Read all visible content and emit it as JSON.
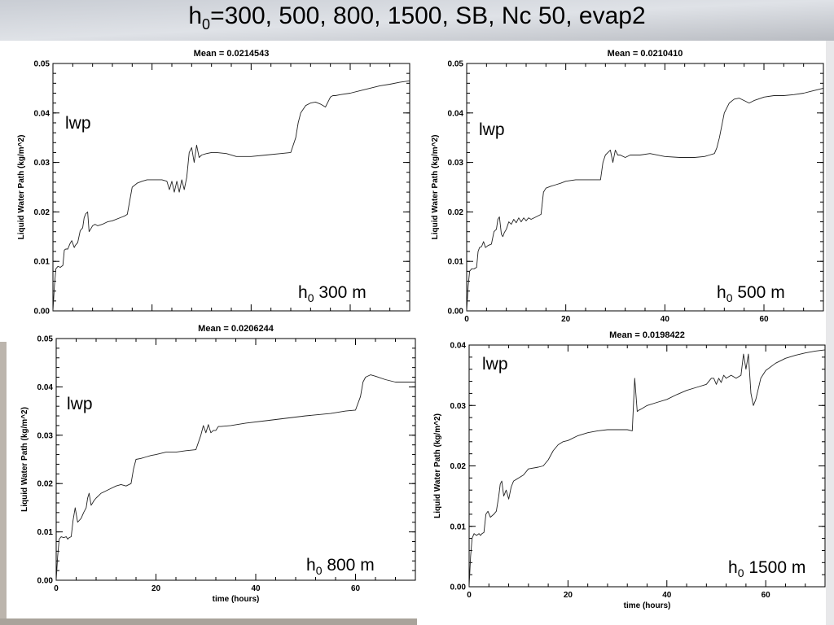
{
  "slide": {
    "title_prefix": "h",
    "title_sub": "0",
    "title_rest": "=300, 500, 800, 1500,  SB, Nc 50, evap2"
  },
  "chart_data": [
    {
      "type": "line",
      "title": "Mean = 0.0214543",
      "ylabel": "Liquid Water Path (kg/m^2)",
      "xlabel": "",
      "xlim": [
        0,
        72
      ],
      "ylim": [
        0,
        0.05
      ],
      "yticks": [
        "0.00",
        "0.01",
        "0.02",
        "0.03",
        "0.04",
        "0.05"
      ],
      "xticks": [],
      "inner_label": "lwp",
      "corner_label": {
        "prefix": "h",
        "sub": "0",
        "rest": " 300 m"
      },
      "series": [
        {
          "x": [
            0,
            0.3,
            0.6,
            1,
            1.5,
            2,
            2.3,
            2.6,
            3,
            3.4,
            3.8,
            4.3,
            4.5,
            5,
            5.5,
            6,
            6.3,
            6.6,
            7,
            7.3,
            7.6,
            8,
            8.5,
            9,
            10,
            11,
            12,
            14,
            14.5,
            15,
            16,
            17,
            18,
            19,
            20,
            21,
            22,
            23,
            23.5,
            24,
            24.5,
            25,
            25.5,
            26,
            26.5,
            27,
            27.5,
            28,
            28.5,
            29,
            29.5,
            30,
            31,
            32,
            33,
            35,
            37,
            40,
            43,
            46,
            48,
            49,
            49.5,
            50,
            51,
            52,
            53,
            54,
            55,
            56,
            56.5,
            57,
            58,
            60,
            62,
            64,
            66,
            68,
            70,
            72
          ],
          "y": [
            0,
            0.005,
            0.0085,
            0.009,
            0.0088,
            0.0092,
            0.0123,
            0.0125,
            0.0125,
            0.0135,
            0.0142,
            0.0128,
            0.0132,
            0.0138,
            0.0162,
            0.0168,
            0.0188,
            0.0196,
            0.02,
            0.016,
            0.0165,
            0.0172,
            0.0175,
            0.0172,
            0.0175,
            0.018,
            0.0182,
            0.019,
            0.0192,
            0.0195,
            0.025,
            0.0258,
            0.0262,
            0.0265,
            0.0265,
            0.0265,
            0.0265,
            0.0262,
            0.0245,
            0.0262,
            0.024,
            0.0262,
            0.024,
            0.0265,
            0.0245,
            0.027,
            0.032,
            0.033,
            0.03,
            0.0335,
            0.031,
            0.0315,
            0.0318,
            0.032,
            0.032,
            0.0318,
            0.0312,
            0.0312,
            0.0315,
            0.0318,
            0.032,
            0.035,
            0.038,
            0.04,
            0.0415,
            0.042,
            0.0422,
            0.0418,
            0.0412,
            0.0432,
            0.0435,
            0.0435,
            0.0437,
            0.044,
            0.0445,
            0.045,
            0.0455,
            0.0458,
            0.0462,
            0.0465
          ]
        }
      ]
    },
    {
      "type": "line",
      "title": "Mean = 0.0210410",
      "ylabel": "Liquid Water Path (kg/m^2)",
      "xlabel": "",
      "xlim": [
        0,
        72
      ],
      "ylim": [
        0,
        0.05
      ],
      "yticks": [
        "0.00",
        "0.01",
        "0.02",
        "0.03",
        "0.04",
        "0.05"
      ],
      "xticks": [
        "0",
        "20",
        "40",
        "60"
      ],
      "inner_label": "lwp",
      "corner_label": {
        "prefix": "h",
        "sub": "0",
        "rest": " 500 m"
      },
      "series": [
        {
          "x": [
            0,
            0.3,
            0.6,
            1,
            1.5,
            2,
            2.3,
            2.6,
            3,
            3.4,
            3.8,
            4.3,
            5,
            5.5,
            6,
            6.3,
            6.6,
            7,
            7.3,
            7.6,
            8,
            8.5,
            9,
            9.5,
            10,
            10.5,
            11,
            11.5,
            12,
            12.5,
            13,
            14,
            15,
            15.5,
            16,
            17,
            18,
            19,
            20,
            22,
            24,
            26,
            27,
            27.5,
            28,
            28.5,
            29,
            29.5,
            30,
            30.5,
            31,
            32,
            33,
            35,
            37,
            40,
            43,
            46,
            48,
            49,
            50,
            50.5,
            51,
            52,
            53,
            54,
            55,
            56,
            57,
            58,
            60,
            62,
            64,
            66,
            68,
            70,
            72
          ],
          "y": [
            0,
            0.005,
            0.008,
            0.0085,
            0.0085,
            0.0088,
            0.012,
            0.0128,
            0.013,
            0.014,
            0.0128,
            0.0132,
            0.0135,
            0.016,
            0.0165,
            0.0185,
            0.019,
            0.0155,
            0.015,
            0.0158,
            0.0165,
            0.018,
            0.0175,
            0.0185,
            0.0178,
            0.0188,
            0.018,
            0.0188,
            0.0182,
            0.0188,
            0.0185,
            0.019,
            0.0195,
            0.024,
            0.0248,
            0.0252,
            0.0255,
            0.0258,
            0.0262,
            0.0265,
            0.0265,
            0.0265,
            0.0265,
            0.03,
            0.0315,
            0.032,
            0.0325,
            0.03,
            0.0325,
            0.0315,
            0.0315,
            0.031,
            0.0315,
            0.0315,
            0.0318,
            0.0312,
            0.031,
            0.031,
            0.0312,
            0.0315,
            0.0318,
            0.033,
            0.035,
            0.04,
            0.042,
            0.0428,
            0.043,
            0.0425,
            0.042,
            0.0425,
            0.0432,
            0.0435,
            0.0435,
            0.0437,
            0.044,
            0.0445,
            0.045
          ]
        }
      ]
    },
    {
      "type": "line",
      "title": "Mean = 0.0206244",
      "ylabel": "Liquid Water Path (kg/m^2)",
      "xlabel": "time (hours)",
      "xlim": [
        0,
        72
      ],
      "ylim": [
        0,
        0.05
      ],
      "yticks": [
        "0.00",
        "0.01",
        "0.02",
        "0.03",
        "0.04",
        "0.05"
      ],
      "xticks": [
        "0",
        "20",
        "40",
        "60"
      ],
      "inner_label": "lwp",
      "corner_label": {
        "prefix": "h",
        "sub": "0",
        "rest": " 800 m"
      },
      "series": [
        {
          "x": [
            0,
            0.3,
            0.6,
            1,
            1.5,
            2,
            2.3,
            2.6,
            3,
            3.4,
            3.8,
            4.3,
            5,
            5.5,
            6,
            6.3,
            6.6,
            7,
            7.3,
            7.6,
            8,
            8.5,
            9,
            10,
            11,
            12,
            13,
            14,
            15,
            15.5,
            16,
            17,
            18,
            19,
            20,
            22,
            24,
            26,
            28,
            29,
            29.5,
            30,
            30.5,
            31,
            31.5,
            32,
            32.5,
            33,
            35,
            38,
            42,
            46,
            50,
            55,
            58,
            60,
            61,
            61.5,
            62,
            63,
            64,
            66,
            68,
            70,
            72
          ],
          "y": [
            0,
            0.005,
            0.0085,
            0.009,
            0.0088,
            0.009,
            0.0085,
            0.0088,
            0.009,
            0.0125,
            0.015,
            0.012,
            0.0128,
            0.014,
            0.015,
            0.017,
            0.018,
            0.0155,
            0.016,
            0.0165,
            0.017,
            0.0175,
            0.018,
            0.0185,
            0.019,
            0.0195,
            0.0198,
            0.0195,
            0.02,
            0.023,
            0.025,
            0.0252,
            0.0255,
            0.0258,
            0.026,
            0.0265,
            0.0265,
            0.0268,
            0.027,
            0.03,
            0.032,
            0.0305,
            0.0322,
            0.0305,
            0.031,
            0.031,
            0.0318,
            0.0318,
            0.032,
            0.0325,
            0.033,
            0.0335,
            0.034,
            0.0345,
            0.035,
            0.0352,
            0.038,
            0.041,
            0.042,
            0.0425,
            0.0422,
            0.0415,
            0.041,
            0.041,
            0.041
          ]
        }
      ]
    },
    {
      "type": "line",
      "title": "Mean = 0.0198422",
      "ylabel": "Liquid Water Path (kg/m^2)",
      "xlabel": "time (hours)",
      "xlim": [
        0,
        72
      ],
      "ylim": [
        0,
        0.04
      ],
      "yticks": [
        "0.00",
        "0.01",
        "0.02",
        "0.03",
        "0.04"
      ],
      "xticks": [
        "0",
        "20",
        "40",
        "60"
      ],
      "inner_label": "lwp",
      "corner_label": {
        "prefix": "h",
        "sub": "0",
        "rest": " 1500 m"
      },
      "series": [
        {
          "x": [
            0,
            0.3,
            0.6,
            1,
            1.5,
            2,
            2.3,
            2.6,
            3,
            3.4,
            3.8,
            4.3,
            5,
            5.5,
            6,
            6.3,
            6.6,
            7,
            7.5,
            8,
            8.5,
            9,
            10,
            11,
            12,
            14,
            15,
            16,
            17,
            18,
            19,
            20,
            22,
            24,
            26,
            28,
            30,
            32,
            33,
            33.5,
            34,
            34.3,
            35,
            36,
            38,
            40,
            42,
            44,
            46,
            48,
            49,
            49.5,
            50,
            50.5,
            51,
            51.5,
            52,
            53,
            54,
            55,
            55.5,
            56,
            56.5,
            57,
            57.5,
            58,
            59,
            60,
            62,
            64,
            66,
            68,
            70,
            72
          ],
          "y": [
            0,
            0.005,
            0.008,
            0.0088,
            0.0085,
            0.0088,
            0.0085,
            0.0088,
            0.009,
            0.012,
            0.0125,
            0.0115,
            0.012,
            0.0125,
            0.015,
            0.017,
            0.0175,
            0.015,
            0.016,
            0.0145,
            0.0165,
            0.0175,
            0.018,
            0.0185,
            0.0195,
            0.0198,
            0.02,
            0.021,
            0.0225,
            0.0235,
            0.024,
            0.0242,
            0.025,
            0.0255,
            0.0258,
            0.026,
            0.026,
            0.026,
            0.0258,
            0.0345,
            0.029,
            0.0292,
            0.0295,
            0.03,
            0.0305,
            0.031,
            0.0318,
            0.0325,
            0.033,
            0.0335,
            0.0345,
            0.0345,
            0.0335,
            0.0345,
            0.0338,
            0.035,
            0.0345,
            0.035,
            0.0345,
            0.035,
            0.0385,
            0.036,
            0.0385,
            0.032,
            0.03,
            0.031,
            0.0345,
            0.0358,
            0.037,
            0.0378,
            0.0383,
            0.0387,
            0.039,
            0.0392
          ]
        }
      ]
    }
  ]
}
